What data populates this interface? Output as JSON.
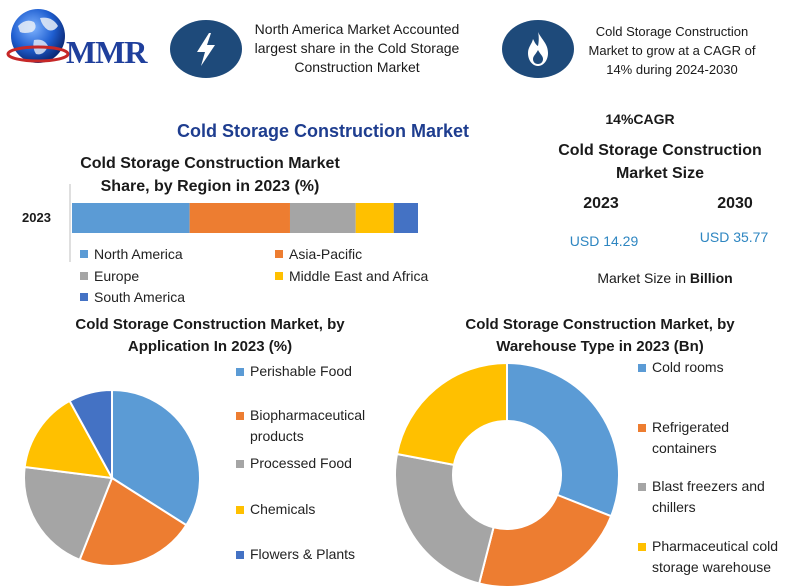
{
  "header": {
    "logo_text": "MMR",
    "callout_1": [
      "North America Market Accounted",
      "largest share in the Cold Storage",
      "Construction Market"
    ],
    "callout_2": [
      "Cold Storage Construction",
      "Market to grow at a CAGR of",
      "14% during 2024-2030"
    ]
  },
  "main_title": "Cold Storage Construction Market",
  "region_chart": {
    "title_lines": [
      "Cold Storage Construction Market",
      "Share, by Region in 2023 (%)"
    ],
    "row_label": "2023"
  },
  "market_size": {
    "cagr": "14%CAGR",
    "title_lines": [
      "Cold Storage Construction",
      "Market Size"
    ],
    "year_1": "2023",
    "year_2": "2030",
    "value_1": "USD 14.29",
    "value_2": "USD 35.77",
    "unit_prefix": "Market Size in ",
    "unit_bold": "Billion"
  },
  "application_chart": {
    "title_lines": [
      "Cold Storage Construction Market, by",
      "Application In 2023 (%)"
    ]
  },
  "warehouse_chart": {
    "title_lines": [
      "Cold Storage Construction Market, by",
      "Warehouse Type in 2023 (Bn)"
    ]
  },
  "icons": [
    "globe-icon",
    "lightning-icon",
    "flame-icon"
  ],
  "colors": {
    "blue": "#5b9bd5",
    "orange": "#ed7d31",
    "gray": "#a5a5a5",
    "yellow": "#ffc000",
    "dark_blue": "#4472c4",
    "header_circle": "#1e4a7a",
    "title_blue": "#1e3d8f",
    "usd_blue": "#2e86c1"
  },
  "chart_data": [
    {
      "type": "bar",
      "orientation": "horizontal-stacked",
      "categories": [
        "2023"
      ],
      "series": [
        {
          "name": "North America",
          "values": [
            34
          ]
        },
        {
          "name": "Asia-Pacific",
          "values": [
            29
          ]
        },
        {
          "name": "Europe",
          "values": [
            19
          ]
        },
        {
          "name": "Middle East and Africa",
          "values": [
            11
          ]
        },
        {
          "name": "South America",
          "values": [
            7
          ]
        }
      ],
      "legend": "bottom"
    },
    {
      "type": "pie",
      "labels": [
        "Perishable Food",
        "Biopharmaceutical products",
        "Processed Food",
        "Chemicals",
        "Flowers & Plants"
      ],
      "legend_labels": [
        [
          "Perishable Food"
        ],
        [
          "Biopharmaceutical",
          "products"
        ],
        [
          "Processed Food"
        ],
        [
          "Chemicals"
        ],
        [
          "Flowers & Plants"
        ]
      ],
      "values": [
        34,
        22,
        21,
        15,
        8
      ],
      "legend": "right"
    },
    {
      "type": "pie",
      "style": "donut",
      "labels": [
        "Cold rooms",
        "Refrigerated containers",
        "Blast freezers and chillers",
        "Pharmaceutical cold storage warehouse"
      ],
      "legend_labels": [
        [
          "Cold rooms"
        ],
        [
          "Refrigerated",
          "containers"
        ],
        [
          "Blast freezers and",
          "chillers"
        ],
        [
          "Pharmaceutical cold",
          "storage warehouse"
        ]
      ],
      "values": [
        31,
        23,
        24,
        22
      ],
      "legend": "right"
    }
  ]
}
